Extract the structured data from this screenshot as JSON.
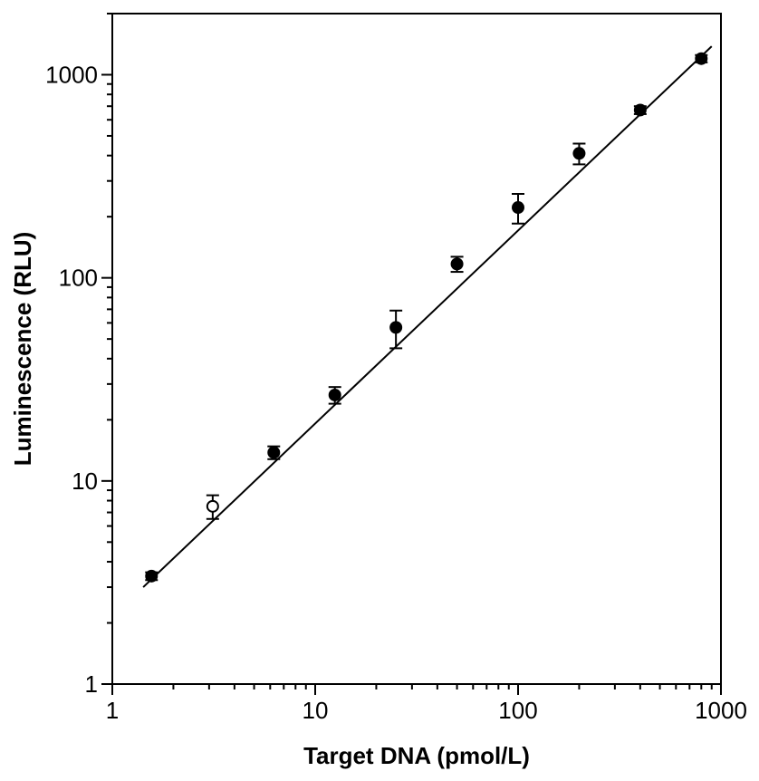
{
  "chart_data": {
    "type": "scatter",
    "title": "",
    "xlabel": "Target DNA (pmol/L)",
    "ylabel": "Luminescence (RLU)",
    "xscale": "log",
    "yscale": "log",
    "xlim": [
      1,
      1000
    ],
    "ylim": [
      1,
      2000
    ],
    "grid": false,
    "legend": "none",
    "x_ticks": [
      {
        "value": 1,
        "label": "1"
      },
      {
        "value": 10,
        "label": "10"
      },
      {
        "value": 100,
        "label": "100"
      },
      {
        "value": 1000,
        "label": "1000"
      }
    ],
    "y_ticks": [
      {
        "value": 1,
        "label": "1"
      },
      {
        "value": 10,
        "label": "10"
      },
      {
        "value": 100,
        "label": "100"
      },
      {
        "value": 1000,
        "label": "1000"
      }
    ],
    "series": [
      {
        "marker": "filled-circle",
        "color": "#000000",
        "points": [
          {
            "x": 1.56,
            "y": 3.4,
            "err": 0.15
          },
          {
            "x": 6.25,
            "y": 13.8,
            "err": 1.0
          },
          {
            "x": 12.5,
            "y": 26.5,
            "err": 2.5
          },
          {
            "x": 25,
            "y": 57,
            "err": 12
          },
          {
            "x": 50,
            "y": 117,
            "err": 10
          },
          {
            "x": 100,
            "y": 222,
            "err": 37
          },
          {
            "x": 200,
            "y": 410,
            "err": 48
          },
          {
            "x": 400,
            "y": 670,
            "err": 30
          },
          {
            "x": 800,
            "y": 1200,
            "err": 50
          }
        ]
      },
      {
        "marker": "open-circle",
        "color": "#000000",
        "points": [
          {
            "x": 3.125,
            "y": 7.5,
            "err": 1.0
          }
        ]
      }
    ],
    "fit_line": {
      "x": [
        1.42,
        900
      ],
      "y": [
        3.0,
        1380
      ],
      "color": "#000000"
    }
  }
}
